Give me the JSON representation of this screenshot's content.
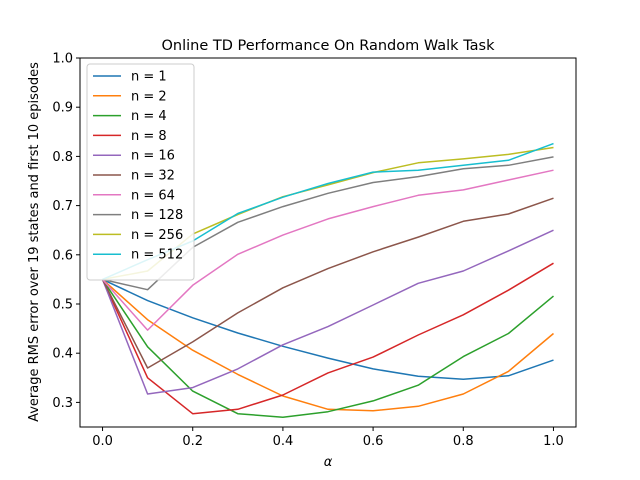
{
  "chart_data": {
    "type": "line",
    "title": "Online TD Performance On Random Walk Task",
    "xlabel": "α",
    "ylabel": "Average RMS error over 19 states and first 10 episodes",
    "xlim": [
      -0.05,
      1.05
    ],
    "ylim": [
      0.25,
      1.0
    ],
    "xticks": [
      "0.0",
      "0.2",
      "0.4",
      "0.6",
      "0.8",
      "1.0"
    ],
    "yticks": [
      "0.3",
      "0.4",
      "0.5",
      "0.6",
      "0.7",
      "0.8",
      "0.9",
      "1.0"
    ],
    "grid": false,
    "legend_position": "upper-left",
    "x": [
      0.0,
      0.1,
      0.2,
      0.3,
      0.4,
      0.5,
      0.6,
      0.7,
      0.8,
      0.9,
      1.0
    ],
    "series": [
      {
        "name": "n = 1",
        "color": "#1f77b4",
        "values": [
          0.55,
          0.507,
          0.472,
          0.441,
          0.414,
          0.39,
          0.368,
          0.353,
          0.347,
          0.354,
          0.386
        ]
      },
      {
        "name": "n = 2",
        "color": "#ff7f0e",
        "values": [
          0.55,
          0.468,
          0.406,
          0.357,
          0.313,
          0.286,
          0.283,
          0.292,
          0.317,
          0.363,
          0.44
        ]
      },
      {
        "name": "n = 4",
        "color": "#2ca02c",
        "values": [
          0.55,
          0.413,
          0.323,
          0.277,
          0.27,
          0.281,
          0.303,
          0.335,
          0.393,
          0.44,
          0.516
        ]
      },
      {
        "name": "n = 8",
        "color": "#d62728",
        "values": [
          0.55,
          0.35,
          0.277,
          0.286,
          0.315,
          0.36,
          0.392,
          0.437,
          0.478,
          0.528,
          0.583
        ]
      },
      {
        "name": "n = 16",
        "color": "#9467bd",
        "values": [
          0.55,
          0.317,
          0.33,
          0.368,
          0.417,
          0.454,
          0.498,
          0.542,
          0.567,
          0.608,
          0.65
        ]
      },
      {
        "name": "n = 32",
        "color": "#8c564b",
        "values": [
          0.55,
          0.37,
          0.423,
          0.482,
          0.533,
          0.572,
          0.606,
          0.636,
          0.668,
          0.683,
          0.715
        ]
      },
      {
        "name": "n = 64",
        "color": "#e377c2",
        "values": [
          0.55,
          0.447,
          0.538,
          0.601,
          0.64,
          0.673,
          0.698,
          0.721,
          0.732,
          0.752,
          0.772
        ]
      },
      {
        "name": "n = 128",
        "color": "#7f7f7f",
        "values": [
          0.55,
          0.529,
          0.615,
          0.666,
          0.698,
          0.725,
          0.747,
          0.759,
          0.775,
          0.782,
          0.799
        ]
      },
      {
        "name": "n = 256",
        "color": "#bcbd22",
        "values": [
          0.55,
          0.567,
          0.642,
          0.682,
          0.718,
          0.742,
          0.767,
          0.787,
          0.795,
          0.804,
          0.818
        ]
      },
      {
        "name": "n = 512",
        "color": "#17becf",
        "values": [
          0.55,
          0.59,
          0.628,
          0.684,
          0.717,
          0.745,
          0.768,
          0.772,
          0.782,
          0.792,
          0.826
        ]
      }
    ]
  }
}
